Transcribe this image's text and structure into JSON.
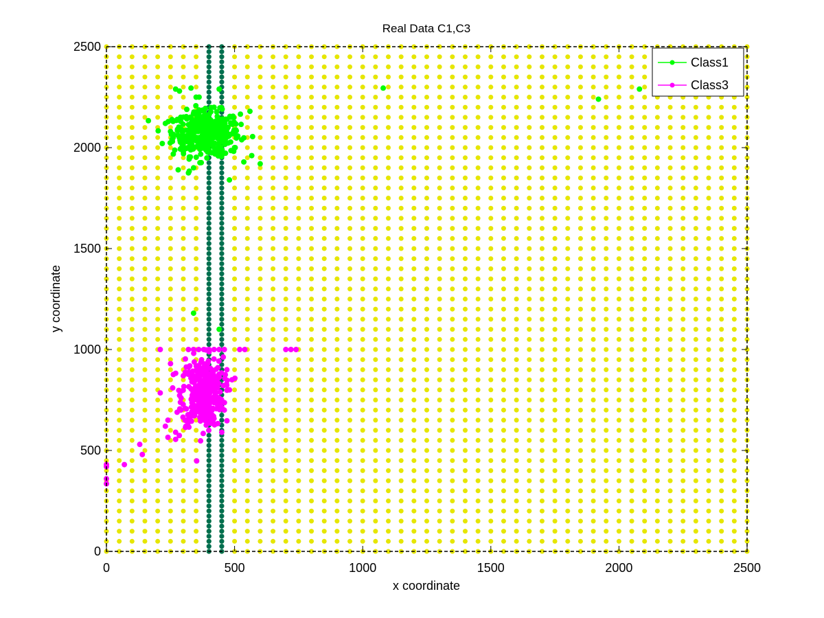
{
  "chart_data": {
    "type": "scatter",
    "title": "Real Data C1,C3",
    "xlabel": "x coordinate",
    "ylabel": "y coordinate",
    "xlim": [
      0,
      2500
    ],
    "ylim": [
      0,
      2500
    ],
    "xticks": [
      0,
      500,
      1000,
      1500,
      2000,
      2500
    ],
    "yticks": [
      0,
      500,
      1000,
      1500,
      2000,
      2500
    ],
    "xtick_labels": [
      "0",
      "500",
      "1000",
      "1500",
      "2000",
      "2500"
    ],
    "ytick_labels": [
      "0",
      "500",
      "1000",
      "1500",
      "2000",
      "2500"
    ],
    "grid": false,
    "legend_position": "top-right",
    "background_grid_points": {
      "color": "#e6e600",
      "x_start": 0,
      "x_end": 2500,
      "x_step": 50,
      "y_start": 0,
      "y_end": 2500,
      "y_step": 50
    },
    "vertical_point_lines": {
      "color": "#006f4f",
      "x": [
        400,
        450
      ],
      "y_start": 0,
      "y_end": 2500,
      "y_step": 25
    },
    "series": [
      {
        "name": "Class1",
        "color": "#00ff00",
        "clusters": [
          {
            "center": [
              390,
              2070
            ],
            "spread": [
              65,
              55
            ],
            "count": 420
          }
        ],
        "points": [
          [
            1080,
            2295
          ],
          [
            1920,
            2240
          ],
          [
            2080,
            2290
          ],
          [
            600,
            1920
          ],
          [
            560,
            2180
          ],
          [
            270,
            2290
          ],
          [
            285,
            2280
          ],
          [
            330,
            2295
          ],
          [
            440,
            2290
          ],
          [
            230,
            2120
          ],
          [
            280,
            1890
          ],
          [
            300,
            1980
          ],
          [
            480,
            1840
          ],
          [
            320,
            1875
          ],
          [
            340,
            1900
          ],
          [
            260,
            2130
          ],
          [
            250,
            2080
          ],
          [
            500,
            2000
          ],
          [
            450,
            1960
          ],
          [
            350,
            2250
          ],
          [
            420,
            2200
          ],
          [
            380,
            2180
          ],
          [
            340,
            1180
          ],
          [
            440,
            1100
          ]
        ]
      },
      {
        "name": "Class3",
        "color": "#ff00ff",
        "clusters": [
          {
            "center": [
              375,
              790
            ],
            "spread": [
              40,
              85
            ],
            "count": 380
          }
        ],
        "points": [
          [
            0,
            420
          ],
          [
            0,
            430
          ],
          [
            0,
            360
          ],
          [
            0,
            335
          ],
          [
            70,
            430
          ],
          [
            140,
            480
          ],
          [
            130,
            530
          ],
          [
            210,
            785
          ],
          [
            210,
            1000
          ],
          [
            250,
            930
          ],
          [
            230,
            620
          ],
          [
            240,
            565
          ],
          [
            240,
            650
          ],
          [
            270,
            555
          ],
          [
            270,
            590
          ],
          [
            520,
            1000
          ],
          [
            540,
            1000
          ],
          [
            700,
            1000
          ],
          [
            720,
            1000
          ],
          [
            740,
            1000
          ],
          [
            450,
            590
          ],
          [
            470,
            900
          ],
          [
            490,
            850
          ],
          [
            320,
            1000
          ],
          [
            340,
            1000
          ],
          [
            360,
            1000
          ],
          [
            380,
            1000
          ],
          [
            400,
            1000
          ],
          [
            420,
            1000
          ],
          [
            440,
            1000
          ],
          [
            460,
            1000
          ],
          [
            300,
            870
          ],
          [
            290,
            700
          ],
          [
            310,
            620
          ],
          [
            480,
            800
          ],
          [
            460,
            700
          ]
        ]
      }
    ]
  }
}
